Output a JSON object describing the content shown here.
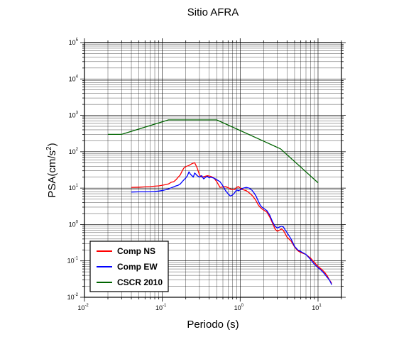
{
  "chart_data": {
    "type": "line",
    "title": "Sitio AFRA",
    "xlabel": "Periodo (s)",
    "ylabel": {
      "base": "PSA(cm/s",
      "sup": "2",
      "close": ")"
    },
    "x_scale": "log",
    "y_scale": "log",
    "xlim": [
      0.01,
      20
    ],
    "ylim": [
      0.01,
      100000
    ],
    "grid": true,
    "legend_position": "bottom-left",
    "x_ticks": [
      {
        "base": "10",
        "exp": "-2",
        "value": 0.01
      },
      {
        "base": "10",
        "exp": "-1",
        "value": 0.1
      },
      {
        "base": "10",
        "exp": "0",
        "value": 1
      },
      {
        "base": "10",
        "exp": "1",
        "value": 10
      }
    ],
    "y_ticks": [
      {
        "base": "10",
        "exp": "-2",
        "value": 0.01
      },
      {
        "base": "10",
        "exp": "-1",
        "value": 0.1
      },
      {
        "base": "10",
        "exp": "0",
        "value": 1
      },
      {
        "base": "10",
        "exp": "1",
        "value": 10
      },
      {
        "base": "10",
        "exp": "2",
        "value": 100
      },
      {
        "base": "10",
        "exp": "3",
        "value": 1000
      },
      {
        "base": "10",
        "exp": "4",
        "value": 10000
      },
      {
        "base": "10",
        "exp": "5",
        "value": 100000
      }
    ],
    "series": [
      {
        "name": "Comp NS",
        "color": "#ff0000",
        "points": [
          [
            0.04,
            10.5
          ],
          [
            0.05,
            10.6
          ],
          [
            0.06,
            10.8
          ],
          [
            0.07,
            11
          ],
          [
            0.08,
            11.3
          ],
          [
            0.09,
            11.5
          ],
          [
            0.1,
            12
          ],
          [
            0.11,
            12.5
          ],
          [
            0.12,
            13
          ],
          [
            0.13,
            14.5
          ],
          [
            0.14,
            15
          ],
          [
            0.15,
            17
          ],
          [
            0.16,
            20
          ],
          [
            0.17,
            23
          ],
          [
            0.18,
            30
          ],
          [
            0.19,
            36
          ],
          [
            0.2,
            39
          ],
          [
            0.22,
            42
          ],
          [
            0.24,
            47
          ],
          [
            0.26,
            50
          ],
          [
            0.28,
            36
          ],
          [
            0.3,
            23
          ],
          [
            0.32,
            20
          ],
          [
            0.35,
            21
          ],
          [
            0.38,
            22
          ],
          [
            0.42,
            21
          ],
          [
            0.46,
            19
          ],
          [
            0.5,
            15
          ],
          [
            0.55,
            10.5
          ],
          [
            0.6,
            10.8
          ],
          [
            0.65,
            11
          ],
          [
            0.7,
            10.3
          ],
          [
            0.75,
            9.5
          ],
          [
            0.8,
            9
          ],
          [
            0.85,
            9.2
          ],
          [
            0.9,
            10.5
          ],
          [
            0.95,
            11
          ],
          [
            1.0,
            10
          ],
          [
            1.1,
            9
          ],
          [
            1.2,
            8.5
          ],
          [
            1.3,
            7.5
          ],
          [
            1.4,
            6.5
          ],
          [
            1.5,
            5.5
          ],
          [
            1.6,
            4.5
          ],
          [
            1.7,
            3.5
          ],
          [
            1.8,
            3
          ],
          [
            1.9,
            2.7
          ],
          [
            2.0,
            2.5
          ],
          [
            2.2,
            2.2
          ],
          [
            2.4,
            1.6
          ],
          [
            2.6,
            1.1
          ],
          [
            2.8,
            0.75
          ],
          [
            3.0,
            0.65
          ],
          [
            3.2,
            0.7
          ],
          [
            3.4,
            0.75
          ],
          [
            3.6,
            0.68
          ],
          [
            3.8,
            0.55
          ],
          [
            4.0,
            0.45
          ],
          [
            4.5,
            0.35
          ],
          [
            5.0,
            0.24
          ],
          [
            5.5,
            0.19
          ],
          [
            6.0,
            0.17
          ],
          [
            7.0,
            0.15
          ],
          [
            8.0,
            0.12
          ],
          [
            9.0,
            0.09
          ],
          [
            10.0,
            0.07
          ],
          [
            11.0,
            0.06
          ],
          [
            12.0,
            0.05
          ],
          [
            13.0,
            0.04
          ],
          [
            14.0,
            0.03
          ],
          [
            15.0,
            0.024
          ]
        ]
      },
      {
        "name": "Comp EW",
        "color": "#0000ff",
        "points": [
          [
            0.04,
            7.8
          ],
          [
            0.05,
            7.9
          ],
          [
            0.06,
            7.9
          ],
          [
            0.07,
            8
          ],
          [
            0.08,
            8.1
          ],
          [
            0.09,
            8.3
          ],
          [
            0.1,
            8.6
          ],
          [
            0.11,
            9
          ],
          [
            0.12,
            9.5
          ],
          [
            0.13,
            10.2
          ],
          [
            0.14,
            10.8
          ],
          [
            0.15,
            11.5
          ],
          [
            0.16,
            12
          ],
          [
            0.17,
            13
          ],
          [
            0.18,
            15
          ],
          [
            0.19,
            17
          ],
          [
            0.2,
            19
          ],
          [
            0.21,
            22
          ],
          [
            0.22,
            28
          ],
          [
            0.23,
            24
          ],
          [
            0.24,
            22
          ],
          [
            0.25,
            20
          ],
          [
            0.26,
            26
          ],
          [
            0.27,
            24
          ],
          [
            0.28,
            22
          ],
          [
            0.3,
            20
          ],
          [
            0.32,
            22
          ],
          [
            0.34,
            18
          ],
          [
            0.36,
            20
          ],
          [
            0.38,
            21
          ],
          [
            0.4,
            19
          ],
          [
            0.42,
            20
          ],
          [
            0.45,
            19
          ],
          [
            0.48,
            18
          ],
          [
            0.5,
            17
          ],
          [
            0.55,
            15
          ],
          [
            0.6,
            11.5
          ],
          [
            0.65,
            8.5
          ],
          [
            0.7,
            7
          ],
          [
            0.75,
            6
          ],
          [
            0.8,
            6.5
          ],
          [
            0.85,
            7.5
          ],
          [
            0.9,
            9
          ],
          [
            0.95,
            8.5
          ],
          [
            1.0,
            9
          ],
          [
            1.1,
            10
          ],
          [
            1.2,
            10.5
          ],
          [
            1.3,
            10
          ],
          [
            1.4,
            9
          ],
          [
            1.5,
            7.5
          ],
          [
            1.6,
            6
          ],
          [
            1.7,
            4.5
          ],
          [
            1.8,
            3.5
          ],
          [
            1.9,
            3
          ],
          [
            2.0,
            2.8
          ],
          [
            2.2,
            2.4
          ],
          [
            2.4,
            1.8
          ],
          [
            2.6,
            1.2
          ],
          [
            2.8,
            0.9
          ],
          [
            3.0,
            0.8
          ],
          [
            3.2,
            0.85
          ],
          [
            3.4,
            0.9
          ],
          [
            3.6,
            0.85
          ],
          [
            3.8,
            0.7
          ],
          [
            4.0,
            0.6
          ],
          [
            4.5,
            0.4
          ],
          [
            5.0,
            0.25
          ],
          [
            5.5,
            0.2
          ],
          [
            6.0,
            0.18
          ],
          [
            7.0,
            0.15
          ],
          [
            8.0,
            0.11
          ],
          [
            9.0,
            0.08
          ],
          [
            10.0,
            0.065
          ],
          [
            11.0,
            0.055
          ],
          [
            12.0,
            0.045
          ],
          [
            13.0,
            0.036
          ],
          [
            14.0,
            0.03
          ],
          [
            15.0,
            0.022
          ]
        ]
      },
      {
        "name": "CSCR 2010",
        "color": "#006400",
        "points": [
          [
            0.02,
            300
          ],
          [
            0.03,
            300
          ],
          [
            0.12,
            750
          ],
          [
            0.5,
            750
          ],
          [
            3.3,
            120
          ],
          [
            10.0,
            14
          ]
        ]
      }
    ]
  }
}
